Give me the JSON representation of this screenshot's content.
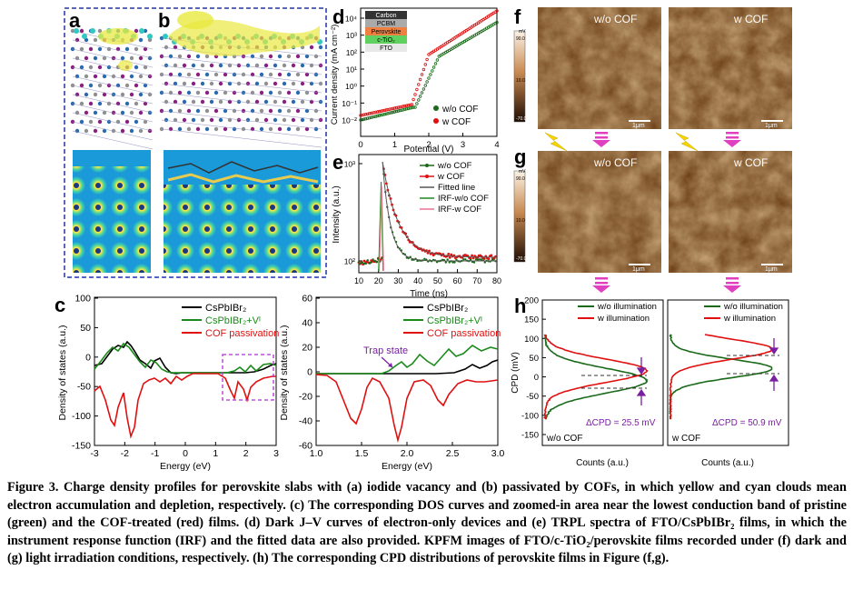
{
  "panels": {
    "a": {
      "letter": "a"
    },
    "b": {
      "letter": "b"
    },
    "c": {
      "letter": "c",
      "left": {
        "ylabel": "Density of states (a.u.)",
        "xlabel": "Energy (eV)",
        "xticks": [
          "-3",
          "-2",
          "-1",
          "0",
          "1",
          "2",
          "3"
        ],
        "yticks": [
          "100",
          "50",
          "0",
          "-50",
          "-100",
          "-150"
        ],
        "legend": [
          "CsPbIBr₂",
          "CsPbIBr₂+Vᴵ",
          "COF passivation"
        ]
      },
      "right": {
        "ylabel": "Density of states (a.u.)",
        "xlabel": "Energy (eV)",
        "xticks": [
          "1.0",
          "1.5",
          "2.0",
          "2.5",
          "3.0"
        ],
        "yticks": [
          "60",
          "40",
          "20",
          "0",
          "-20",
          "-40",
          "-60"
        ],
        "legend": [
          "CsPbIBr₂",
          "CsPbIBr₂+Vᴵ",
          "COF passivation"
        ],
        "annotation": "Trap state"
      }
    },
    "d": {
      "letter": "d",
      "ylabel": "Current density (mA cm⁻²)",
      "xlabel": "Potential (V)",
      "xticks": [
        "0",
        "1",
        "2",
        "3",
        "4"
      ],
      "yticks": [
        "10⁴",
        "10³",
        "10²",
        "10¹",
        "10⁰",
        "10⁻¹",
        "10⁻²"
      ],
      "legend": [
        "w/o  COF",
        "w     COF"
      ],
      "stack": [
        "Carbon",
        "PCBM",
        "Perovskite",
        "c-TiO₂",
        "FTO"
      ]
    },
    "e": {
      "letter": "e",
      "ylabel": "Intensity (a.u.)",
      "xlabel": "Time (ns)",
      "xticks": [
        "10",
        "20",
        "30",
        "40",
        "50",
        "60",
        "70",
        "80"
      ],
      "yticks": [
        "10³",
        "10²"
      ],
      "legend": [
        "w/o COF",
        "w COF",
        "Fitted line",
        "IRF-w/o COF",
        "IRF-w COF"
      ]
    },
    "f": {
      "letter": "f",
      "labels": [
        "w/o COF",
        "w COF"
      ],
      "scalebar": "1μm"
    },
    "g": {
      "letter": "g",
      "labels": [
        "w/o COF",
        "w COF"
      ],
      "scalebar": "1μm"
    },
    "colorbar": {
      "unit": "mV",
      "top": "90.0",
      "mid": "10.0",
      "bottom": "-70.0"
    },
    "h": {
      "letter": "h",
      "ylabel": "CPD (mV)",
      "yticks": [
        "200",
        "150",
        "100",
        "50",
        "0",
        "-50",
        "-100",
        "-150"
      ],
      "xlabel": "Counts (a.u.)",
      "legend": [
        "w/o illumination",
        "w illumination"
      ],
      "left": {
        "sample": "w/o COF",
        "delta": "ΔCPD = 25.5 mV"
      },
      "right": {
        "sample": "w COF",
        "delta": "ΔCPD = 50.9 mV"
      }
    }
  },
  "caption": {
    "lead": "Figure 3.",
    "text": "Charge density profiles for perovskite slabs with (a) iodide vacancy and (b) passivated by COFs, in which yellow and cyan clouds mean electron accumulation and depletion, respectively. (c) The corresponding DOS curves and zoomed-in area near the lowest conduction band of pristine (green) and the COF-treated (red) films. (d) Dark J–V curves of electron-only devices and (e) TRPL spectra of FTO/CsPbIBr₂ films, in which the instrument response function (IRF) and the fitted data are also provided. KPFM images of FTO/c-TiO₂/perovskite films recorded under (f) dark and (g) light irradiation conditions, respectively. (h) The corresponding CPD distributions of perovskite films in Figure (f,g)."
  },
  "colors": {
    "black": "#000000",
    "green": "#1a8a1a",
    "red": "#e01010",
    "purple": "#7a1fa2",
    "magenta": "#e040c0",
    "afm_dark": "#4a2a10",
    "afm_light": "#e6c8a0"
  }
}
